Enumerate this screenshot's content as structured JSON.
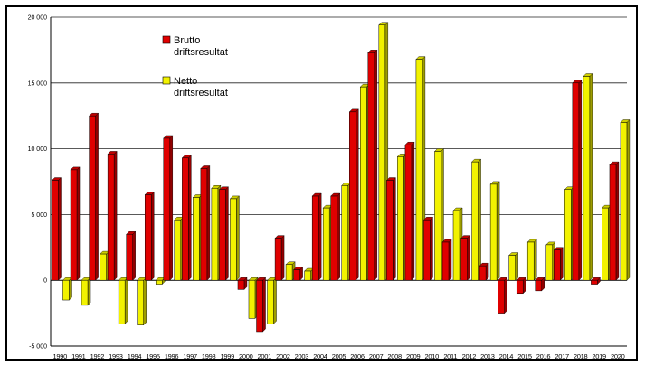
{
  "chart_data": {
    "type": "bar",
    "title": "",
    "xlabel": "",
    "ylabel": "",
    "ylim": [
      -5000,
      20000
    ],
    "yticks": [
      -5000,
      0,
      5000,
      10000,
      15000,
      20000
    ],
    "ytick_labels": [
      "-5 000",
      "0",
      "5 000",
      "10 000",
      "15 000",
      "20 000"
    ],
    "grid": true,
    "legend_position": "top-left-center",
    "categories": [
      "1990",
      "1991",
      "1992",
      "1993",
      "1994",
      "1995",
      "1996",
      "1997",
      "1998",
      "1999",
      "2000",
      "2001",
      "2002",
      "2003",
      "2004",
      "2005",
      "2006",
      "2007",
      "2008",
      "2009",
      "2010",
      "2011",
      "2012",
      "2013",
      "2014",
      "2015",
      "2016",
      "2017",
      "2018",
      "2019",
      "2020"
    ],
    "series": [
      {
        "name_lines": [
          "Brutto",
          "driftsresultat"
        ],
        "color": "#e00000",
        "values": [
          7600,
          8400,
          12500,
          9600,
          3500,
          6500,
          10800,
          9300,
          8500,
          6900,
          -700,
          -3900,
          3200,
          800,
          6400,
          6400,
          12800,
          17300,
          7600,
          10300,
          4600,
          2900,
          3200,
          1100,
          -2500,
          -1000,
          -800,
          2300,
          15000,
          -300,
          8800
        ]
      },
      {
        "name_lines": [
          "Netto",
          "driftsresultat"
        ],
        "color": "#f2f200",
        "values": [
          -1500,
          -1900,
          2000,
          -3300,
          -3400,
          -300,
          4600,
          6300,
          7000,
          6200,
          -2900,
          -3300,
          1200,
          700,
          5500,
          7200,
          14700,
          19400,
          9400,
          16800,
          9800,
          5300,
          9000,
          7300,
          1900,
          2900,
          2700,
          6900,
          15500,
          5500,
          12000
        ]
      }
    ]
  }
}
